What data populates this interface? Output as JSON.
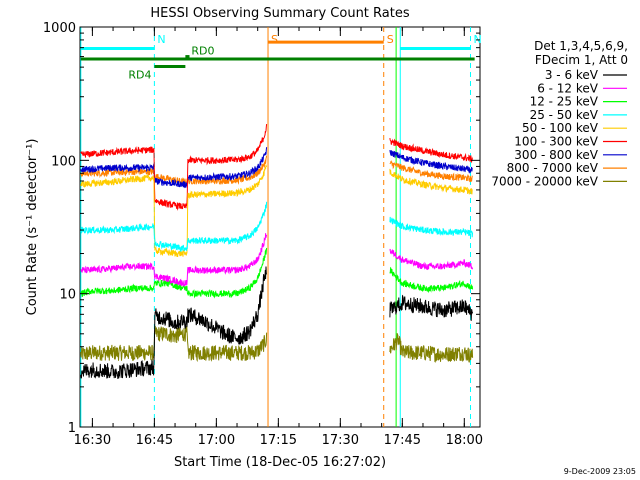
{
  "chart_data": {
    "type": "line",
    "title": "HESSI Observing Summary Count Rates",
    "xlabel": "Start Time (18-Dec-05 16:27:02)",
    "ylabel": "Count Rate (s⁻¹ detector⁻¹)",
    "yscale": "log",
    "ylim": [
      1,
      1000
    ],
    "xlim_minutes": [
      27.0,
      123.8
    ],
    "y_ticks": [
      {
        "v": 1,
        "label": "1"
      },
      {
        "v": 10,
        "label": "10"
      },
      {
        "v": 100,
        "label": "100"
      },
      {
        "v": 1000,
        "label": "1000"
      }
    ],
    "x_ticks": [
      {
        "v": 30,
        "label": "16:30"
      },
      {
        "v": 45,
        "label": "16:45"
      },
      {
        "v": 60,
        "label": "17:00"
      },
      {
        "v": 75,
        "label": "17:15"
      },
      {
        "v": 90,
        "label": "17:30"
      },
      {
        "v": 105,
        "label": "17:45"
      },
      {
        "v": 120,
        "label": "18:00"
      }
    ],
    "legend_header": [
      "Det 1,3,4,5,6,9,",
      "FDecim 1, Att 0"
    ],
    "legend_position": "right",
    "series": [
      {
        "name": "3 - 6 keV",
        "color": "#000000",
        "points": [
          [
            27.2,
            2.6
          ],
          [
            30,
            2.7
          ],
          [
            35,
            2.6
          ],
          [
            40,
            2.7
          ],
          [
            44.9,
            2.8
          ],
          [
            45.1,
            6.8
          ],
          [
            48,
            6.5
          ],
          [
            50,
            6.0
          ],
          [
            52,
            6.3
          ],
          [
            52.9,
            6.2
          ],
          [
            53.1,
            7.0
          ],
          [
            56,
            6.5
          ],
          [
            58,
            6.0
          ],
          [
            60,
            5.5
          ],
          [
            62,
            5.0
          ],
          [
            64,
            4.7
          ],
          [
            66,
            4.7
          ],
          [
            68,
            5.2
          ],
          [
            70,
            7.0
          ],
          [
            71.5,
            12.5
          ],
          [
            72.2,
            15
          ],
          [
            102,
            7.5
          ],
          [
            105,
            8.5
          ],
          [
            110,
            8.0
          ],
          [
            115,
            7.5
          ],
          [
            120,
            8.0
          ],
          [
            122,
            7.0
          ]
        ]
      },
      {
        "name": "6 - 12 keV",
        "color": "#ff00ff",
        "points": [
          [
            27.2,
            15
          ],
          [
            30,
            15
          ],
          [
            35,
            15.5
          ],
          [
            40,
            16
          ],
          [
            44.9,
            16
          ],
          [
            45.1,
            13.5
          ],
          [
            48,
            13
          ],
          [
            50,
            12.5
          ],
          [
            52,
            12
          ],
          [
            52.9,
            12
          ],
          [
            53.1,
            15
          ],
          [
            60,
            15
          ],
          [
            65,
            15
          ],
          [
            68,
            16
          ],
          [
            70,
            18
          ],
          [
            71.5,
            24
          ],
          [
            72.2,
            29
          ],
          [
            102,
            21
          ],
          [
            105,
            18
          ],
          [
            110,
            16
          ],
          [
            115,
            16
          ],
          [
            120,
            17
          ],
          [
            122,
            16
          ]
        ]
      },
      {
        "name": "12 - 25 keV",
        "color": "#00ff00",
        "points": [
          [
            27.2,
            10
          ],
          [
            30,
            10.5
          ],
          [
            35,
            10.5
          ],
          [
            40,
            11
          ],
          [
            44.9,
            11
          ],
          [
            45.1,
            12
          ],
          [
            48,
            12
          ],
          [
            50,
            11.5
          ],
          [
            52,
            11
          ],
          [
            52.9,
            11
          ],
          [
            53.1,
            10
          ],
          [
            60,
            10
          ],
          [
            65,
            10
          ],
          [
            68,
            11
          ],
          [
            70,
            13
          ],
          [
            71.5,
            18
          ],
          [
            72.2,
            22
          ],
          [
            102,
            15
          ],
          [
            105,
            12
          ],
          [
            110,
            11
          ],
          [
            115,
            11
          ],
          [
            120,
            12
          ],
          [
            122,
            11
          ]
        ]
      },
      {
        "name": "25 - 50 keV",
        "color": "#00ffff",
        "points": [
          [
            27.2,
            30
          ],
          [
            30,
            30
          ],
          [
            35,
            30
          ],
          [
            40,
            31
          ],
          [
            44.9,
            32
          ],
          [
            45.1,
            24
          ],
          [
            48,
            23
          ],
          [
            50,
            22.5
          ],
          [
            52,
            22
          ],
          [
            52.9,
            22
          ],
          [
            53.1,
            25
          ],
          [
            60,
            25
          ],
          [
            65,
            25
          ],
          [
            68,
            27
          ],
          [
            70,
            31
          ],
          [
            71.5,
            40
          ],
          [
            72.2,
            48
          ],
          [
            102,
            36
          ],
          [
            105,
            32
          ],
          [
            110,
            30
          ],
          [
            115,
            29
          ],
          [
            120,
            29
          ],
          [
            122,
            28
          ]
        ]
      },
      {
        "name": "50 - 100 keV",
        "color": "#ffcc00",
        "points": [
          [
            27.2,
            66
          ],
          [
            30,
            67
          ],
          [
            35,
            69
          ],
          [
            40,
            72
          ],
          [
            44.9,
            74
          ],
          [
            45.1,
            21
          ],
          [
            48,
            20.5
          ],
          [
            50,
            20
          ],
          [
            52,
            20
          ],
          [
            52.9,
            20
          ],
          [
            53.1,
            55
          ],
          [
            60,
            56
          ],
          [
            65,
            57
          ],
          [
            68,
            60
          ],
          [
            70,
            66
          ],
          [
            71.5,
            80
          ],
          [
            72.2,
            95
          ],
          [
            102,
            82
          ],
          [
            105,
            72
          ],
          [
            110,
            66
          ],
          [
            115,
            62
          ],
          [
            120,
            60
          ],
          [
            122,
            58
          ]
        ]
      },
      {
        "name": "100 - 300 keV",
        "color": "#ff0000",
        "points": [
          [
            27.2,
            110
          ],
          [
            30,
            112
          ],
          [
            35,
            115
          ],
          [
            40,
            118
          ],
          [
            44.9,
            120
          ],
          [
            45.1,
            50
          ],
          [
            48,
            47
          ],
          [
            50,
            46
          ],
          [
            52,
            45
          ],
          [
            52.9,
            45
          ],
          [
            53.1,
            100
          ],
          [
            60,
            100
          ],
          [
            65,
            101
          ],
          [
            68,
            106
          ],
          [
            70,
            118
          ],
          [
            71.5,
            150
          ],
          [
            72.2,
            180
          ],
          [
            102,
            140
          ],
          [
            105,
            128
          ],
          [
            110,
            118
          ],
          [
            115,
            110
          ],
          [
            120,
            105
          ],
          [
            122,
            102
          ]
        ]
      },
      {
        "name": "300 - 800 keV",
        "color": "#0000cc",
        "points": [
          [
            27.2,
            86
          ],
          [
            30,
            86
          ],
          [
            35,
            88
          ],
          [
            40,
            88
          ],
          [
            44.9,
            88
          ],
          [
            45.1,
            70
          ],
          [
            48,
            68
          ],
          [
            50,
            67
          ],
          [
            52,
            66
          ],
          [
            52.9,
            66
          ],
          [
            53.1,
            74
          ],
          [
            60,
            75
          ],
          [
            65,
            76
          ],
          [
            68,
            80
          ],
          [
            70,
            88
          ],
          [
            71.5,
            105
          ],
          [
            72.2,
            120
          ],
          [
            102,
            115
          ],
          [
            105,
            105
          ],
          [
            110,
            96
          ],
          [
            115,
            90
          ],
          [
            120,
            86
          ],
          [
            122,
            84
          ]
        ]
      },
      {
        "name": "800 - 7000 keV",
        "color": "#ff8000",
        "points": [
          [
            27.2,
            80
          ],
          [
            30,
            80
          ],
          [
            35,
            81
          ],
          [
            40,
            82
          ],
          [
            44.9,
            82
          ],
          [
            45.1,
            76
          ],
          [
            48,
            73
          ],
          [
            50,
            71
          ],
          [
            52,
            69
          ],
          [
            52.9,
            69
          ],
          [
            53.1,
            70
          ],
          [
            60,
            70
          ],
          [
            65,
            71
          ],
          [
            68,
            74
          ],
          [
            70,
            80
          ],
          [
            71.5,
            92
          ],
          [
            72.2,
            105
          ],
          [
            102,
            95
          ],
          [
            105,
            88
          ],
          [
            110,
            80
          ],
          [
            115,
            76
          ],
          [
            120,
            74
          ],
          [
            122,
            72
          ]
        ]
      },
      {
        "name": "7000 - 20000 keV",
        "color": "#808000",
        "points": [
          [
            27.2,
            3.5
          ],
          [
            30,
            3.6
          ],
          [
            35,
            3.6
          ],
          [
            40,
            3.6
          ],
          [
            44.9,
            3.6
          ],
          [
            45.1,
            5.0
          ],
          [
            48,
            5.0
          ],
          [
            50,
            4.8
          ],
          [
            52,
            5.0
          ],
          [
            52.9,
            5.0
          ],
          [
            53.1,
            3.6
          ],
          [
            60,
            3.6
          ],
          [
            65,
            3.6
          ],
          [
            68,
            3.6
          ],
          [
            70,
            3.7
          ],
          [
            71.5,
            4.2
          ],
          [
            72.2,
            4.6
          ],
          [
            102,
            3.8
          ],
          [
            104,
            4.5
          ],
          [
            105,
            3.6
          ],
          [
            110,
            3.6
          ],
          [
            115,
            3.5
          ],
          [
            120,
            3.6
          ],
          [
            122,
            3.4
          ]
        ]
      }
    ],
    "flags": [
      {
        "label": "N",
        "type": "vline",
        "x": 45,
        "color": "#00ffff",
        "dashed": true
      },
      {
        "label": "N",
        "type": "vline",
        "x": 121.5,
        "color": "#00ffff",
        "dashed": true
      },
      {
        "label": "",
        "type": "vline",
        "x": 27.2,
        "color": "#00ffff",
        "dashed": false
      },
      {
        "label": "",
        "type": "vline",
        "x": 104.5,
        "color": "#00ffff",
        "dashed": false
      },
      {
        "label": "S",
        "type": "vline",
        "x": 72.5,
        "color": "#ff8000",
        "dashed": false
      },
      {
        "label": "S",
        "type": "vline",
        "x": 100.5,
        "color": "#ff8000",
        "dashed": true
      },
      {
        "label": "",
        "type": "vline",
        "x": 103.5,
        "color": "#00ff00",
        "dashed": false
      }
    ],
    "bars": [
      {
        "label": "",
        "color": "#00ffff",
        "x0": 27.2,
        "x1": 45,
        "y": 690
      },
      {
        "label": "",
        "color": "#00ffff",
        "x0": 104.5,
        "x1": 121.5,
        "y": 690
      },
      {
        "label": "S",
        "color": "#ff8000",
        "x0": 72.5,
        "x1": 100.5,
        "y": 770
      },
      {
        "label": "",
        "color": "#008000",
        "x0": 27.2,
        "x1": 122.5,
        "y": 575
      },
      {
        "label": "RD4",
        "color": "#008000",
        "x0": 45,
        "x1": 52.5,
        "y": 505
      },
      {
        "label": "RD0",
        "color": "#008000",
        "x0": 52.5,
        "x1": 53.5,
        "y": 600
      }
    ],
    "timestamp": "9-Dec-2009 23:05"
  }
}
